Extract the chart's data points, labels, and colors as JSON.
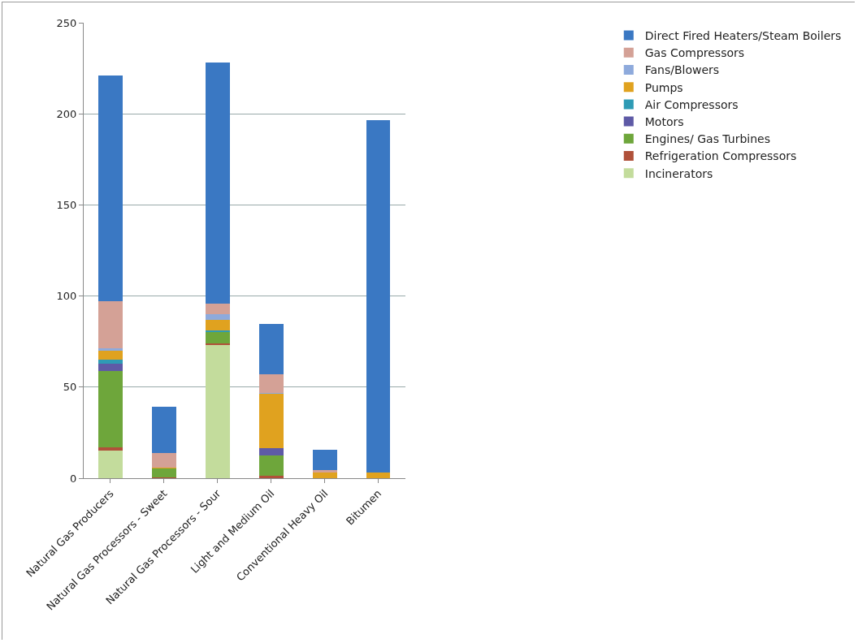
{
  "chart_data": {
    "type": "bar",
    "stacked": true,
    "categories": [
      "Natural Gas Producers",
      "Natural Gas Processors - Sweet",
      "Natural Gas Processors - Sour",
      "Light and Medium Oil",
      "Conventional Heavy Oil",
      "Bitumen"
    ],
    "series": [
      {
        "name": "Incinerators",
        "color": "#c3dc9c",
        "values": [
          15,
          0,
          73,
          0,
          0,
          0
        ]
      },
      {
        "name": "Refrigeration Compressors",
        "color": "#b0513a",
        "values": [
          2,
          0.5,
          1,
          1.5,
          0,
          0
        ]
      },
      {
        "name": "Engines/ Gas Turbines",
        "color": "#6ea63b",
        "values": [
          42,
          5,
          6,
          11,
          0,
          0
        ]
      },
      {
        "name": "Motors",
        "color": "#5e5aa6",
        "values": [
          4,
          0,
          0,
          4,
          0,
          0
        ]
      },
      {
        "name": "Air Compressors",
        "color": "#2e9bb5",
        "values": [
          2,
          0,
          1,
          0,
          0,
          0
        ]
      },
      {
        "name": "Pumps",
        "color": "#e0a21f",
        "values": [
          5,
          0.5,
          6,
          30,
          3,
          3
        ]
      },
      {
        "name": "Fans/Blowers",
        "color": "#8eaadc",
        "values": [
          1.5,
          0,
          3,
          0.5,
          0,
          0
        ]
      },
      {
        "name": "Gas Compressors",
        "color": "#d4a196",
        "values": [
          25.5,
          8,
          6,
          10,
          1.5,
          0
        ]
      },
      {
        "name": "Direct Fired Heaters/Steam Boilers",
        "color": "#3a78c3",
        "values": [
          124,
          25,
          132,
          27.5,
          11,
          193.5
        ]
      }
    ],
    "ylim": [
      0,
      250
    ],
    "yticks": [
      0,
      50,
      100,
      150,
      200,
      250
    ],
    "grid": "y",
    "legend": "right"
  }
}
